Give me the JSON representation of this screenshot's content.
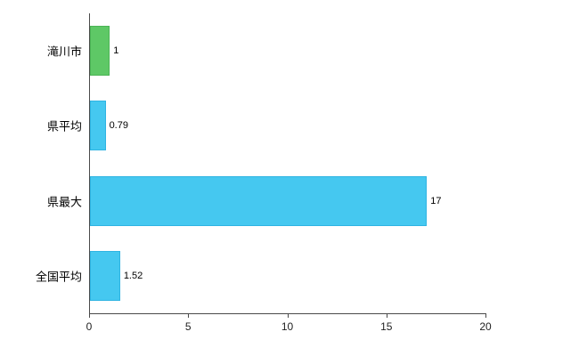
{
  "chart_data": {
    "type": "bar",
    "orientation": "horizontal",
    "title": "",
    "xlabel": "",
    "ylabel": "",
    "categories": [
      "滝川市",
      "県平均",
      "県最大",
      "全国平均"
    ],
    "values": [
      1,
      0.79,
      17,
      1.52
    ],
    "value_labels": [
      "1",
      "0.79",
      "17",
      "1.52"
    ],
    "bar_colors": [
      "#5ec866",
      "#45c8f0",
      "#45c8f0",
      "#45c8f0"
    ],
    "bar_border_colors": [
      "#4bb455",
      "#2fb4e2",
      "#2fb4e2",
      "#2fb4e2"
    ],
    "xlim": [
      0,
      20
    ],
    "x_ticks": [
      0,
      5,
      10,
      15,
      20
    ],
    "grid": false,
    "legend": "none",
    "background": "#ffffff",
    "axis_color": "#4a4a4a"
  }
}
